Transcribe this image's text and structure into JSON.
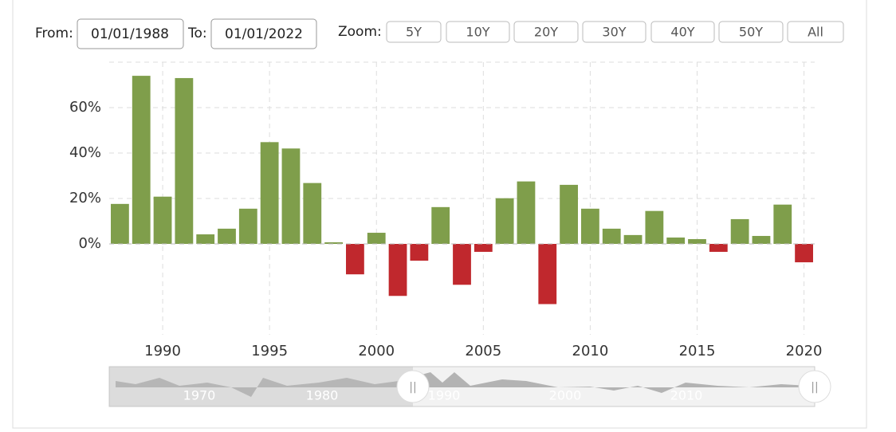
{
  "range_selector": {
    "from_label": "From:",
    "from_value": "01/01/1988",
    "to_label": "To:",
    "to_value": "01/01/2022",
    "zoom_label": "Zoom:",
    "buttons": [
      "5Y",
      "10Y",
      "20Y",
      "30Y",
      "40Y",
      "50Y",
      "All"
    ]
  },
  "navigator": {
    "labels": [
      "1970",
      "1980",
      "1990",
      "2000",
      "2010"
    ]
  },
  "chart_data": {
    "type": "bar",
    "x": [
      1988,
      1989,
      1990,
      1991,
      1992,
      1993,
      1994,
      1995,
      1996,
      1997,
      1998,
      1999,
      2000,
      2001,
      2002,
      2003,
      2004,
      2005,
      2006,
      2007,
      2008,
      2009,
      2010,
      2011,
      2012,
      2013,
      2014,
      2015,
      2016,
      2017,
      2018,
      2019,
      2020
    ],
    "values": [
      17.6,
      74,
      20.8,
      73,
      4.2,
      6.7,
      15.5,
      44.8,
      42,
      26.8,
      0.7,
      -13.4,
      4.9,
      -22.9,
      -7.4,
      16.2,
      -18,
      -3.5,
      20.1,
      27.5,
      -26.5,
      26,
      15.5,
      6.7,
      3.9,
      14.5,
      2.8,
      2.1,
      -3.5,
      10.9,
      3.5,
      17.3,
      -8.1
    ],
    "color_positive": "#7f9e4b",
    "color_negative": "#c0282d",
    "xlim": [
      1987.5,
      2020.5
    ],
    "xticks": [
      1990,
      1995,
      2000,
      2005,
      2010,
      2015,
      2020
    ],
    "ylim": [
      -40,
      80
    ],
    "yticks": [
      {
        "value": 0,
        "label": "0%"
      },
      {
        "value": 20,
        "label": "20%"
      },
      {
        "value": 40,
        "label": "40%"
      },
      {
        "value": 60,
        "label": "60%"
      }
    ],
    "grid": true
  }
}
